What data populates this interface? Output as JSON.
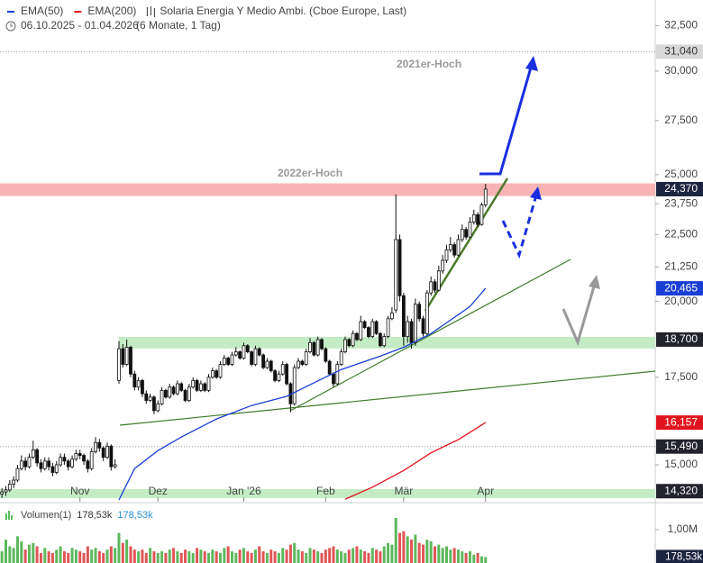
{
  "chart_data": {
    "type": "candlestick",
    "title": "Solaria Energia Y Medio Ambi. (Cboe Europe, Last)",
    "date_range": "06.10.2025 - 01.04.2026",
    "period": "(6 Monate, 1 Tag)",
    "xlim": [
      -0.5,
      167.5
    ],
    "xticks": [
      {
        "value": 20,
        "label": "Nov"
      },
      {
        "value": 40,
        "label": "Dez"
      },
      {
        "value": 62,
        "label": "Jan '26"
      },
      {
        "value": 83,
        "label": "Feb"
      },
      {
        "value": 103,
        "label": "Mär"
      },
      {
        "value": 124,
        "label": "Apr"
      }
    ],
    "ylim": [
      14100,
      34000
    ],
    "log_scale": true,
    "yticks": [
      {
        "value": 32500,
        "label": "32,500"
      },
      {
        "value": 30000,
        "label": "30,000"
      },
      {
        "value": 27500,
        "label": "27,500"
      },
      {
        "value": 25000,
        "label": "25,000"
      },
      {
        "value": 23750,
        "label": "23,750"
      },
      {
        "value": 22500,
        "label": "22,500"
      },
      {
        "value": 21250,
        "label": "21,250"
      },
      {
        "value": 20000,
        "label": "20,000"
      },
      {
        "value": 17500,
        "label": "17,500"
      },
      {
        "value": 15000,
        "label": "15,000"
      }
    ],
    "up_color": "#ffffff",
    "down_color": "#111111",
    "candles": [
      [
        14250,
        14400,
        14150,
        14300
      ],
      [
        14300,
        14450,
        14200,
        14350
      ],
      [
        14350,
        14600,
        14300,
        14500
      ],
      [
        14500,
        14700,
        14400,
        14600
      ],
      [
        14600,
        15000,
        14550,
        14900
      ],
      [
        14900,
        15250,
        14850,
        15100
      ],
      [
        15100,
        15200,
        14850,
        14950
      ],
      [
        14950,
        15300,
        14900,
        15200
      ],
      [
        15200,
        15650,
        15150,
        15400
      ],
      [
        15400,
        15450,
        14950,
        15050
      ],
      [
        15050,
        15150,
        14800,
        14900
      ],
      [
        14900,
        15200,
        14850,
        15100
      ],
      [
        15100,
        15200,
        14850,
        14950
      ],
      [
        14950,
        15050,
        14700,
        14800
      ],
      [
        14800,
        15100,
        14750,
        15000
      ],
      [
        15000,
        15300,
        14950,
        15200
      ],
      [
        15200,
        15300,
        15000,
        15100
      ],
      [
        15100,
        15150,
        14850,
        14950
      ],
      [
        14950,
        15250,
        14900,
        15150
      ],
      [
        15150,
        15400,
        15100,
        15300
      ],
      [
        15300,
        15400,
        15150,
        15250
      ],
      [
        15250,
        15300,
        15000,
        15100
      ],
      [
        15100,
        15150,
        14800,
        14900
      ],
      [
        14900,
        15450,
        14850,
        15350
      ],
      [
        15350,
        15750,
        15300,
        15600
      ],
      [
        15600,
        15700,
        15350,
        15450
      ],
      [
        15450,
        15500,
        15100,
        15200
      ],
      [
        15200,
        15600,
        15150,
        15500
      ],
      [
        15500,
        15550,
        14850,
        14950
      ],
      [
        14950,
        15150,
        14900,
        15000
      ],
      [
        17400,
        18650,
        17300,
        18400
      ],
      [
        18400,
        18550,
        17800,
        17900
      ],
      [
        17900,
        18700,
        17850,
        18450
      ],
      [
        18450,
        18500,
        17500,
        17600
      ],
      [
        17600,
        17700,
        17100,
        17200
      ],
      [
        17200,
        17500,
        17100,
        17400
      ],
      [
        17400,
        17450,
        16900,
        17000
      ],
      [
        17000,
        17100,
        16700,
        16800
      ],
      [
        16800,
        17000,
        16750,
        16900
      ],
      [
        16900,
        16950,
        16400,
        16500
      ],
      [
        16500,
        16800,
        16450,
        16700
      ],
      [
        16700,
        17200,
        16650,
        17100
      ],
      [
        17100,
        17150,
        16850,
        16900
      ],
      [
        16900,
        17300,
        16850,
        17200
      ],
      [
        17200,
        17250,
        16950,
        17000
      ],
      [
        17000,
        17400,
        16950,
        17300
      ],
      [
        17300,
        17350,
        17050,
        17100
      ],
      [
        17100,
        17150,
        16750,
        16800
      ],
      [
        16800,
        17300,
        16750,
        17200
      ],
      [
        17200,
        17500,
        17150,
        17400
      ],
      [
        17400,
        17450,
        17050,
        17100
      ],
      [
        17100,
        17400,
        17050,
        17300
      ],
      [
        17300,
        17350,
        17050,
        17100
      ],
      [
        17100,
        17600,
        17050,
        17500
      ],
      [
        17500,
        17800,
        17450,
        17700
      ],
      [
        17700,
        17750,
        17450,
        17500
      ],
      [
        17500,
        18000,
        17450,
        17900
      ],
      [
        17900,
        18200,
        17850,
        18100
      ],
      [
        18100,
        18150,
        17850,
        17900
      ],
      [
        17900,
        18300,
        17850,
        18200
      ],
      [
        18200,
        18450,
        18150,
        18300
      ],
      [
        18300,
        18350,
        18050,
        18100
      ],
      [
        18100,
        18600,
        18050,
        18500
      ],
      [
        18500,
        18550,
        18250,
        18300
      ],
      [
        18300,
        18350,
        17850,
        17900
      ],
      [
        17900,
        18500,
        17850,
        18400
      ],
      [
        18400,
        18450,
        18150,
        18200
      ],
      [
        18200,
        18250,
        17750,
        17800
      ],
      [
        17800,
        18100,
        17750,
        18000
      ],
      [
        18000,
        18050,
        17650,
        17700
      ],
      [
        17700,
        17750,
        17350,
        17400
      ],
      [
        17400,
        17700,
        17350,
        17600
      ],
      [
        17600,
        18000,
        17550,
        17900
      ],
      [
        17900,
        17950,
        17250,
        17300
      ],
      [
        17300,
        17350,
        16450,
        16700
      ],
      [
        16700,
        17900,
        16650,
        17800
      ],
      [
        17800,
        18100,
        17750,
        18000
      ],
      [
        18000,
        18050,
        17850,
        17900
      ],
      [
        17900,
        18400,
        17850,
        18300
      ],
      [
        18300,
        18750,
        18250,
        18600
      ],
      [
        18600,
        18650,
        18150,
        18200
      ],
      [
        18200,
        18800,
        18150,
        18700
      ],
      [
        18700,
        18750,
        18350,
        18400
      ],
      [
        18400,
        18450,
        17950,
        18000
      ],
      [
        18000,
        18050,
        17550,
        17600
      ],
      [
        17600,
        17650,
        17200,
        17300
      ],
      [
        17300,
        18000,
        17250,
        17900
      ],
      [
        17900,
        18400,
        17850,
        18300
      ],
      [
        18300,
        18800,
        18250,
        18700
      ],
      [
        18700,
        18750,
        18450,
        18500
      ],
      [
        18500,
        19000,
        18450,
        18900
      ],
      [
        18900,
        18950,
        18650,
        18700
      ],
      [
        18700,
        19500,
        18650,
        19300
      ],
      [
        19300,
        19350,
        19050,
        19100
      ],
      [
        19100,
        19150,
        18750,
        18800
      ],
      [
        18800,
        19400,
        18750,
        19300
      ],
      [
        19300,
        19350,
        18850,
        18900
      ],
      [
        18900,
        18950,
        18450,
        18500
      ],
      [
        18500,
        18900,
        18450,
        18800
      ],
      [
        18800,
        19500,
        18750,
        19400
      ],
      [
        19400,
        19800,
        19350,
        19600
      ],
      [
        19700,
        24150,
        19600,
        22300
      ],
      [
        22300,
        22500,
        20000,
        20200
      ],
      [
        20200,
        20300,
        18500,
        18800
      ],
      [
        18800,
        19500,
        18600,
        19300
      ],
      [
        19300,
        19400,
        18400,
        18600
      ],
      [
        18600,
        20100,
        18500,
        19900
      ],
      [
        19900,
        20000,
        19300,
        19400
      ],
      [
        19400,
        19500,
        18800,
        18900
      ],
      [
        18900,
        20400,
        18850,
        20300
      ],
      [
        20300,
        20900,
        20200,
        20700
      ],
      [
        20700,
        20800,
        20300,
        20400
      ],
      [
        20400,
        21300,
        20350,
        21100
      ],
      [
        21100,
        21700,
        21000,
        21500
      ],
      [
        21500,
        22100,
        21400,
        21900
      ],
      [
        21900,
        22400,
        21800,
        22100
      ],
      [
        22100,
        22200,
        21600,
        21700
      ],
      [
        21700,
        22500,
        21650,
        22300
      ],
      [
        22300,
        22900,
        22200,
        22700
      ],
      [
        22700,
        22800,
        22300,
        22400
      ],
      [
        22400,
        23200,
        22350,
        23000
      ],
      [
        23000,
        23500,
        22900,
        23300
      ],
      [
        23300,
        23400,
        22800,
        22900
      ],
      [
        22900,
        23800,
        22850,
        23700
      ],
      [
        23700,
        24600,
        23600,
        24370
      ]
    ],
    "series": [
      {
        "name": "EMA(50)",
        "color": "#1a3fd6",
        "x": [
          30,
          34,
          40,
          46,
          55,
          64,
          73,
          80,
          87,
          97,
          103,
          110,
          115,
          120,
          124
        ],
        "values": [
          14100,
          14900,
          15380,
          15750,
          16260,
          16650,
          16920,
          17330,
          17740,
          18160,
          18450,
          18900,
          19350,
          19820,
          20465
        ]
      },
      {
        "name": "EMA(200)",
        "color": "#e0141e",
        "x": [
          88,
          95,
          103,
          110,
          117,
          124
        ],
        "values": [
          14120,
          14420,
          14850,
          15320,
          15680,
          16157
        ]
      }
    ],
    "zones": [
      {
        "from": 24077,
        "to": 24620,
        "start": -0.5,
        "color": "#f8b4b4"
      },
      {
        "from": 18410,
        "to": 18790,
        "start": 30,
        "color": "#c4ecc4"
      },
      {
        "from": 14148,
        "to": 14372,
        "start": -0.5,
        "color": "#c4ecc4"
      }
    ],
    "price_labels": [
      {
        "value": 31040,
        "label": "31,040",
        "color": "#d8d8d8",
        "text_color": "#333333",
        "dotted": true
      },
      {
        "value": 24370,
        "label": "24,370",
        "color": "#1c2540",
        "text_color": "#ffffff"
      },
      {
        "value": 20465,
        "label": "20,465",
        "color": "#1a3fd6",
        "text_color": "#ffffff"
      },
      {
        "value": 18700,
        "label": "18,700",
        "color": "#23232e",
        "text_color": "#ffffff"
      },
      {
        "value": 16157,
        "label": "16,157",
        "color": "#e0141e",
        "text_color": "#ffffff"
      },
      {
        "value": 15490,
        "label": "15,490",
        "color": "#23232e",
        "text_color": "#ffffff",
        "dotted": true
      },
      {
        "value": 14320,
        "label": "14,320",
        "color": "#23232e",
        "text_color": "#ffffff"
      }
    ],
    "annotations": [
      "2021er-Hoch",
      "2022er-Hoch"
    ],
    "volume": {
      "name": "Volumen(1)",
      "up_color": "#5cb85c",
      "down_color": "#e05555",
      "ylim": [
        0,
        1700000
      ],
      "yticks": [
        {
          "value": 1000000,
          "label": "1,00M"
        }
      ],
      "last": 178530,
      "last_label": "178,53k",
      "values": [
        350000,
        700000,
        500000,
        450000,
        800000,
        650000,
        400000,
        550000,
        600000,
        500000,
        300000,
        450000,
        350000,
        300000,
        400000,
        500000,
        350000,
        300000,
        450000,
        400000,
        350000,
        300000,
        500000,
        400000,
        450000,
        350000,
        300000,
        400000,
        500000,
        450000,
        900000,
        600000,
        700000,
        500000,
        400000,
        350000,
        400000,
        300000,
        450000,
        350000,
        300000,
        350000,
        300000,
        400000,
        450000,
        350000,
        300000,
        400000,
        350000,
        300000,
        450000,
        400000,
        350000,
        300000,
        400000,
        350000,
        300000,
        450000,
        500000,
        350000,
        300000,
        400000,
        450000,
        350000,
        300000,
        400000,
        500000,
        350000,
        300000,
        400000,
        350000,
        300000,
        450000,
        400000,
        550000,
        600000,
        400000,
        350000,
        300000,
        450000,
        400000,
        350000,
        300000,
        400000,
        450000,
        500000,
        400000,
        350000,
        300000,
        400000,
        450000,
        500000,
        400000,
        350000,
        300000,
        450000,
        400000,
        350000,
        500000,
        600000,
        550000,
        1350000,
        900000,
        950000,
        800000,
        700000,
        850000,
        600000,
        550000,
        700000,
        650000,
        500000,
        550000,
        450000,
        500000,
        400000,
        450000,
        400000,
        350000,
        300000,
        350000,
        250000,
        300000,
        200000,
        178530
      ]
    }
  }
}
